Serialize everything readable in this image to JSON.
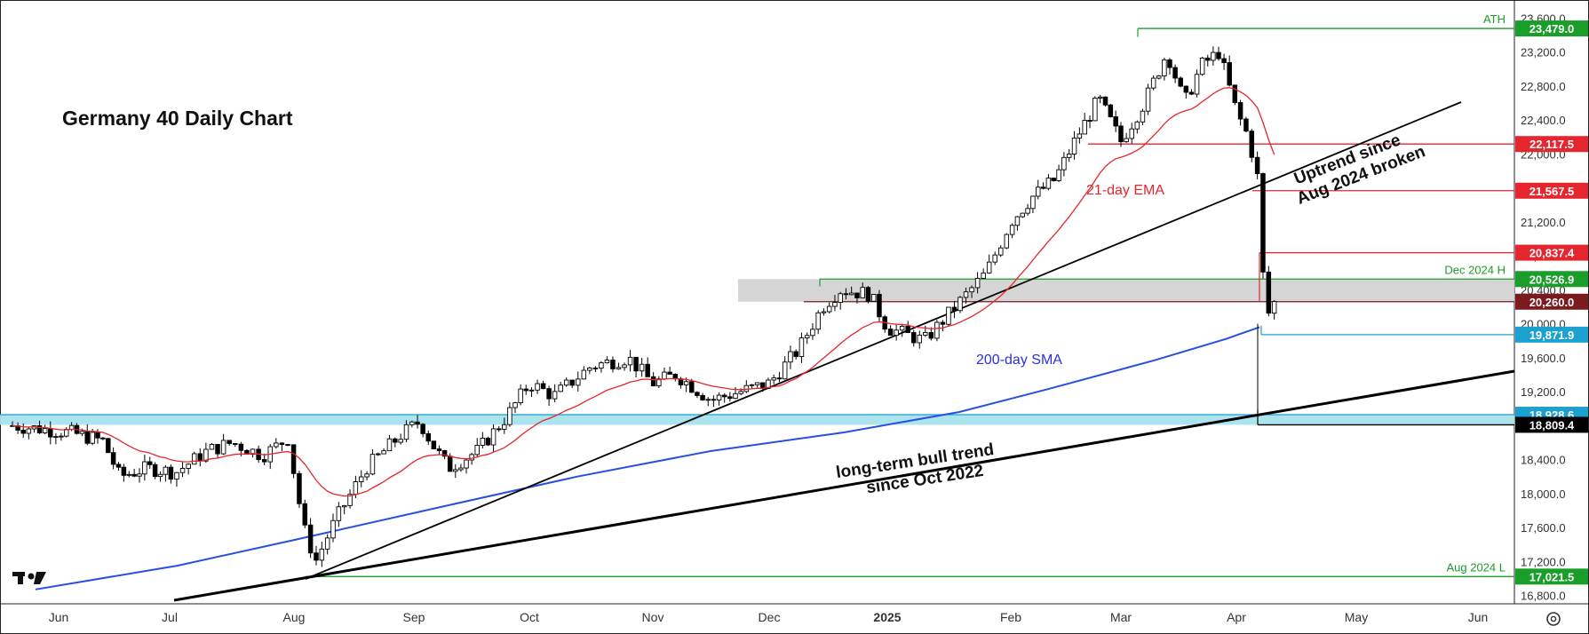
{
  "chart_data": {
    "type": "candlestick",
    "title": "Germany 40 Daily Chart",
    "x_ticks": [
      "Jun",
      "Jul",
      "Aug",
      "Sep",
      "Oct",
      "Nov",
      "Dec",
      "2025",
      "Feb",
      "Mar",
      "Apr",
      "May",
      "Jun"
    ],
    "y_ticks": [
      "16,800.0",
      "17,200.0",
      "17,600.0",
      "18,000.0",
      "18,400.0",
      "18,800.0",
      "19,200.0",
      "19,600.0",
      "20,000.0",
      "20,400.0",
      "20,800.0",
      "21,200.0",
      "21,600.0",
      "22,000.0",
      "22,400.0",
      "22,800.0",
      "23,200.0",
      "23,600.0"
    ],
    "ylim": [
      16780,
      23640
    ],
    "levels": [
      {
        "label": "23,479.0",
        "value": 23479.0,
        "color": "#1a9e2a",
        "note": "ATH"
      },
      {
        "label": "22,117.5",
        "value": 22117.5,
        "color": "#e5262f",
        "note": ""
      },
      {
        "label": "21,567.5",
        "value": 21567.5,
        "color": "#e5262f",
        "note": ""
      },
      {
        "label": "20,837.4",
        "value": 20837.4,
        "color": "#e5262f",
        "note": ""
      },
      {
        "label": "20,526.9",
        "value": 20526.9,
        "color": "#1a9e2a",
        "note": "Dec 2024 H"
      },
      {
        "label": "20,260.0",
        "value": 20260.0,
        "color": "#7b1a1f",
        "note": ""
      },
      {
        "label": "19,871.9",
        "value": 19871.9,
        "color": "#1ba0cf",
        "note": ""
      },
      {
        "label": "18,928.6",
        "value": 18928.6,
        "color": "#1ba0cf",
        "note": ""
      },
      {
        "label": "18,809.4",
        "value": 18809.4,
        "color": "#000000",
        "note": ""
      },
      {
        "label": "17,021.5",
        "value": 17021.5,
        "color": "#1a9e2a",
        "note": "Aug 2024 L"
      }
    ],
    "annotations": {
      "ema": "21-day EMA",
      "sma": "200-day SMA",
      "uptrend_1": "Uptrend since",
      "uptrend_2": "Aug 2024 broken",
      "longterm_1": "long-term bull trend",
      "longterm_2": "since Oct 2022"
    },
    "zones": [
      {
        "name": "resistance",
        "from": 20260.0,
        "to": 20526.9,
        "color": "#d3d3d3"
      },
      {
        "name": "support",
        "from": 18809.4,
        "to": 18928.6,
        "color": "#a8e3ec"
      }
    ],
    "series_path": [
      {
        "month": "Jun",
        "close": 18750
      },
      {
        "month": "Jul",
        "close": 18250
      },
      {
        "month": "Aug",
        "close": 17150
      },
      {
        "month": "Sep",
        "close": 18900
      },
      {
        "month": "Oct",
        "close": 19200
      },
      {
        "month": "Nov",
        "close": 19000
      },
      {
        "month": "Dec",
        "close": 20400
      },
      {
        "month": "2025",
        "close": 19950
      },
      {
        "month": "Feb",
        "close": 22000
      },
      {
        "month": "Mar",
        "close": 23200
      },
      {
        "month": "Apr",
        "close": 20260
      }
    ],
    "colors": {
      "up": "#ffffff",
      "down": "#000000",
      "ema": "#e5262f",
      "sma": "#2a4fe0"
    }
  }
}
